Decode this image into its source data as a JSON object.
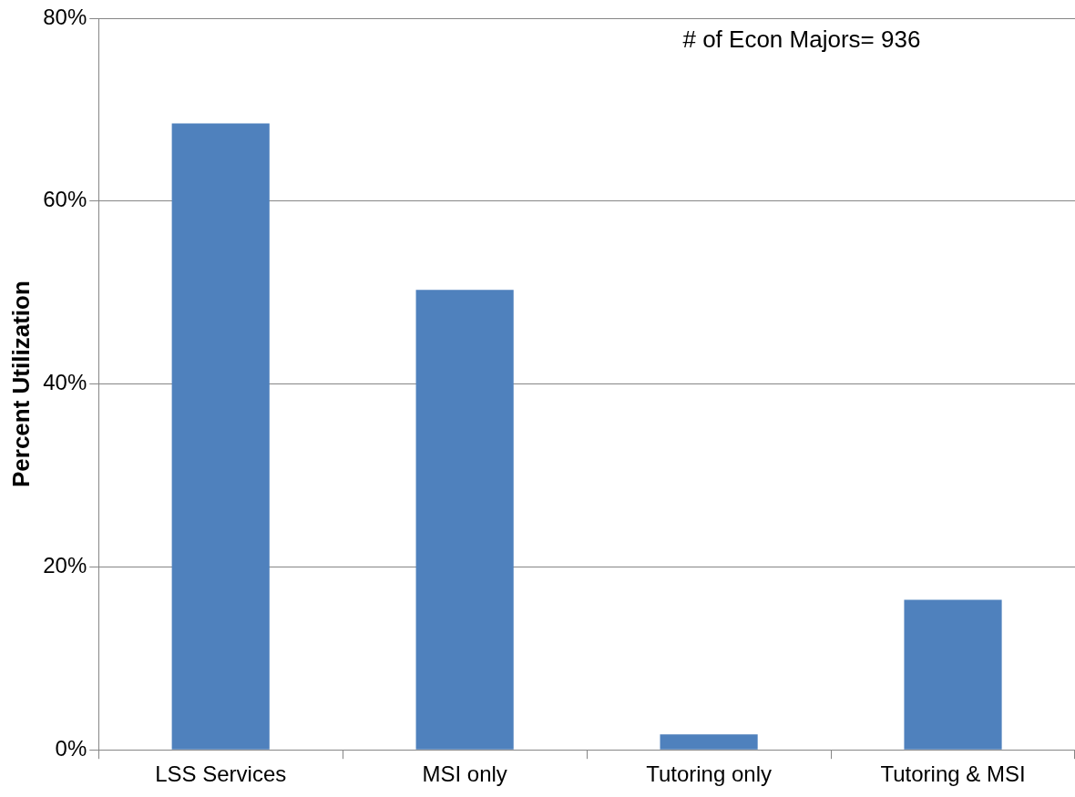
{
  "chart_data": {
    "type": "bar",
    "ylabel": "Percent Utilization",
    "categories": [
      "LSS Services",
      "MSI only",
      "Tutoring only",
      "Tutoring & MSI"
    ],
    "values": [
      68.5,
      50.3,
      1.7,
      16.4
    ],
    "color": "#4f81bd",
    "ylim": [
      0,
      80
    ],
    "yticks": [
      {
        "value": 0,
        "label": "0%"
      },
      {
        "value": 20,
        "label": "20%"
      },
      {
        "value": 40,
        "label": "40%"
      },
      {
        "value": 60,
        "label": "60%"
      },
      {
        "value": 80,
        "label": "80%"
      }
    ],
    "grid": "y",
    "legend": false,
    "annotations": [
      "# of Econ Majors= 936"
    ]
  }
}
